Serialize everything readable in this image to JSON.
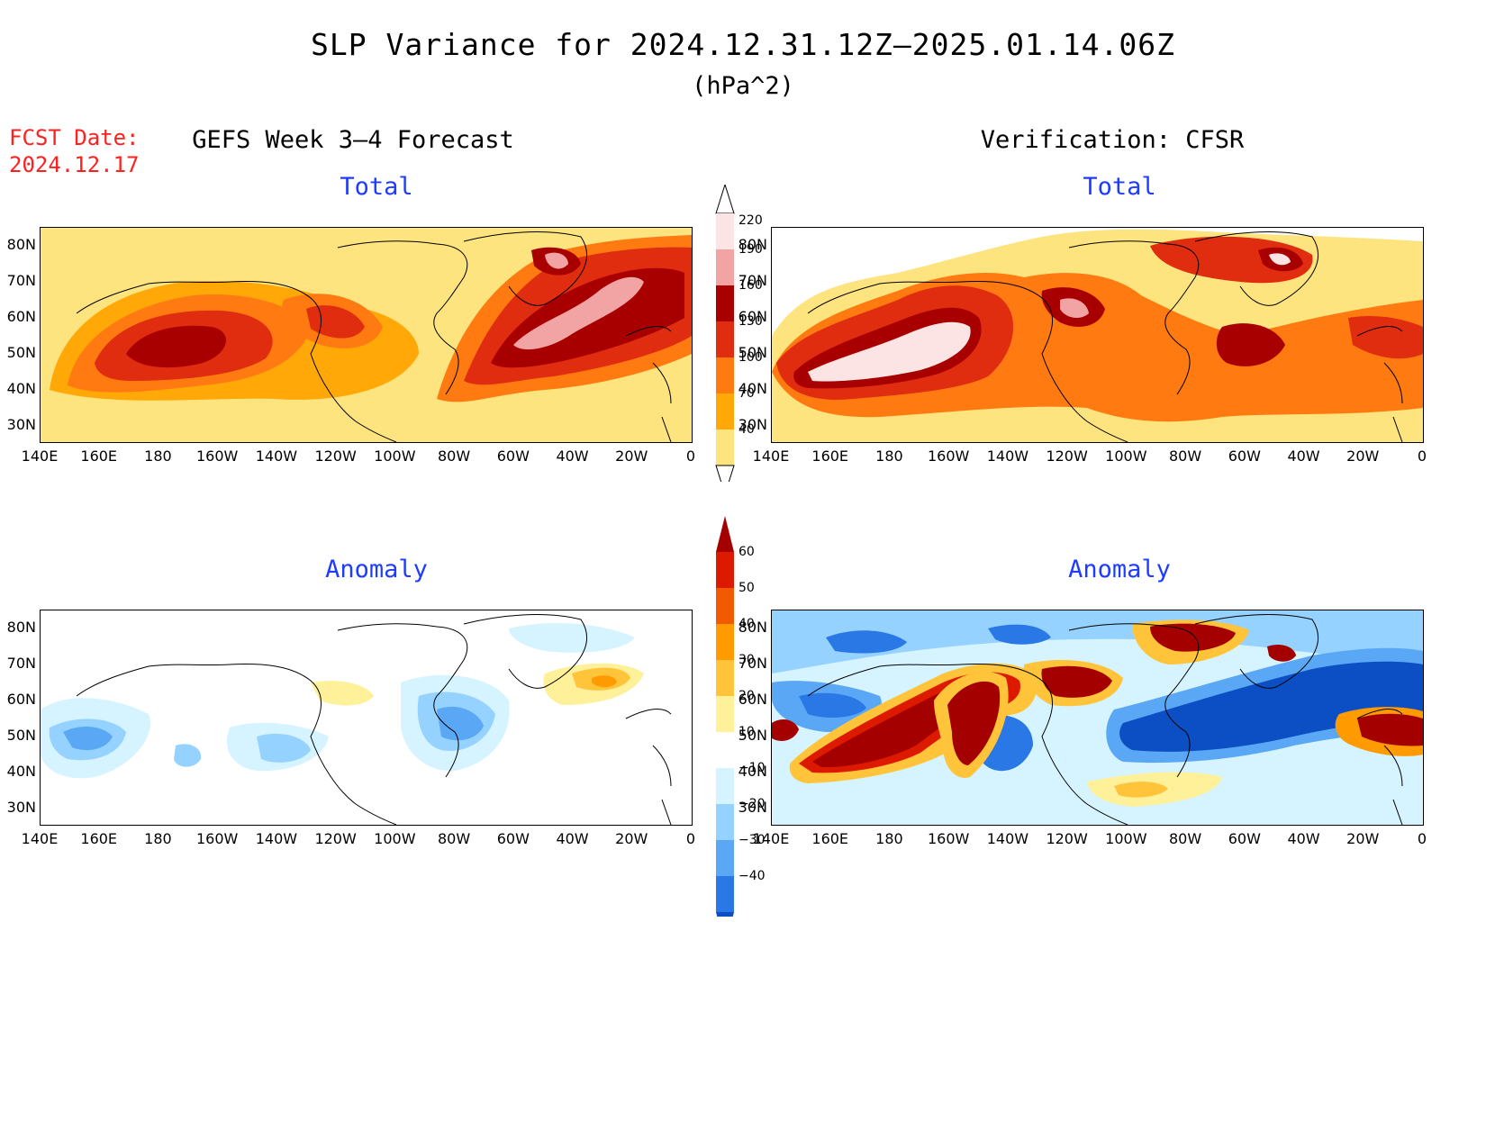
{
  "title": "SLP Variance for 2024.12.31.12Z–2025.01.14.06Z",
  "units": "(hPa^2)",
  "fcst_date": {
    "label": "FCST Date:",
    "value": "2024.12.17"
  },
  "columns": {
    "left": "GEFS Week 3–4 Forecast",
    "right": "Verification: CFSR"
  },
  "panel_titles": {
    "top_left": "Total",
    "top_right": "Total",
    "bottom_left": "Anomaly",
    "bottom_right": "Anomaly"
  },
  "axes": {
    "lat_labels": [
      "80N",
      "70N",
      "60N",
      "50N",
      "40N",
      "30N"
    ],
    "lon_labels": [
      "140E",
      "160E",
      "180",
      "160W",
      "140W",
      "120W",
      "100W",
      "80W",
      "60W",
      "40W",
      "20W",
      "0"
    ]
  },
  "colorbars": {
    "total": {
      "levels": [
        "220",
        "190",
        "160",
        "130",
        "100",
        "70",
        "40"
      ],
      "colors": [
        "#fce4e4",
        "#f2a4a4",
        "#a80000",
        "#e02d10",
        "#ff7a10",
        "#ffa808",
        "#fde47e"
      ]
    },
    "anomaly": {
      "levels": [
        "60",
        "50",
        "40",
        "30",
        "20",
        "10",
        "−10",
        "−20",
        "−30",
        "−40"
      ],
      "warm_colors": [
        "#a50000",
        "#dd1a00",
        "#f25a00",
        "#ff9a00",
        "#ffc43a",
        "#fff09a"
      ],
      "cool_colors": [
        "#d6f4ff",
        "#96d2ff",
        "#5aa8f5",
        "#2a78e6",
        "#0c4fc4"
      ]
    }
  }
}
